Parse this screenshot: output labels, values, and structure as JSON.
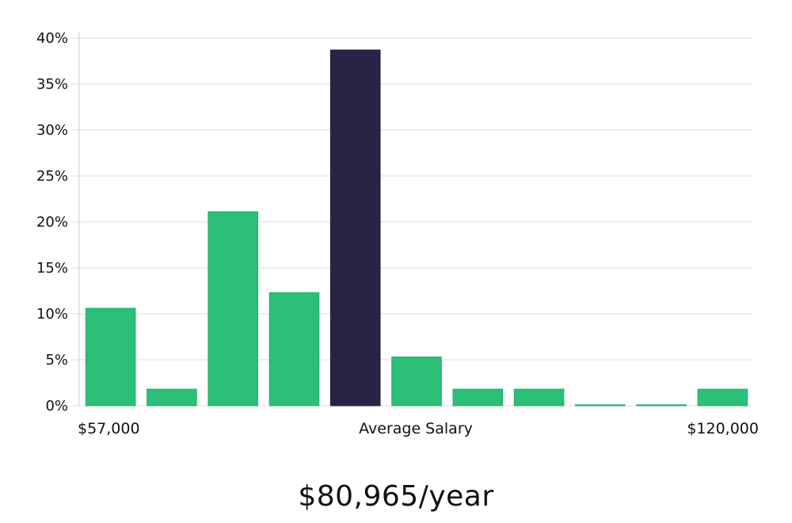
{
  "chart_data": {
    "type": "bar",
    "title": "",
    "xlabel": "Average Salary",
    "ylabel": "",
    "x_range_labels": {
      "min": "$57,000",
      "center": "Average Salary",
      "max": "$120,000"
    },
    "ylim": [
      0,
      40
    ],
    "yticks": [
      0,
      5,
      10,
      15,
      20,
      25,
      30,
      35,
      40
    ],
    "ytick_suffix": "%",
    "grid": true,
    "values": [
      10.6,
      1.8,
      21.1,
      12.3,
      38.7,
      5.3,
      1.8,
      1.8,
      0.1,
      0.1,
      1.8
    ],
    "highlight_index": 4,
    "colors": {
      "bar": "#2bbf78",
      "highlight": "#282446",
      "grid": "#dddddd",
      "axis": "#cccccc"
    }
  },
  "summary": {
    "headline": "$80,965/year"
  }
}
